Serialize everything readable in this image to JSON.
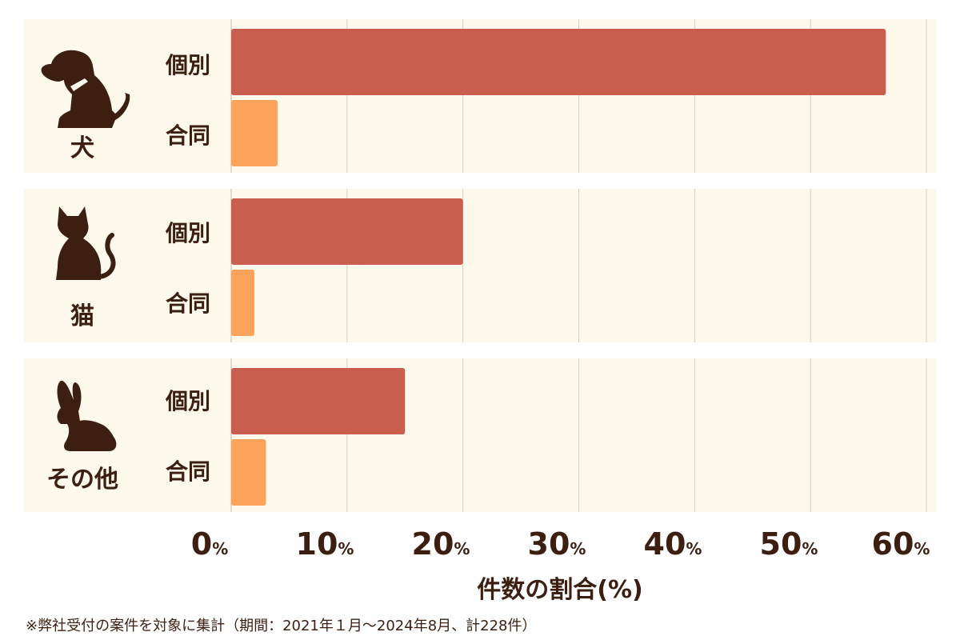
{
  "chart_data": {
    "type": "bar",
    "orientation": "horizontal",
    "groups": [
      {
        "name": "犬",
        "icon": "dog-icon",
        "bars": [
          {
            "label": "個別",
            "value": 56.5
          },
          {
            "label": "合同",
            "value": 4.0
          }
        ]
      },
      {
        "name": "猫",
        "icon": "cat-icon",
        "bars": [
          {
            "label": "個別",
            "value": 20.0
          },
          {
            "label": "合同",
            "value": 2.0
          }
        ]
      },
      {
        "name": "その他",
        "icon": "rabbit-icon",
        "bars": [
          {
            "label": "個別",
            "value": 15.0
          },
          {
            "label": "合同",
            "value": 3.0
          }
        ]
      }
    ],
    "xlim": [
      0,
      60
    ],
    "ticks": [
      {
        "num": "0",
        "unit": "%"
      },
      {
        "num": "10",
        "unit": "%"
      },
      {
        "num": "20",
        "unit": "%"
      },
      {
        "num": "30",
        "unit": "%"
      },
      {
        "num": "40",
        "unit": "%"
      },
      {
        "num": "50",
        "unit": "%"
      },
      {
        "num": "60",
        "unit": "%"
      }
    ],
    "xlabel": "件数の割合(%)",
    "grid": true,
    "colors": {
      "individual": "#c95d4e",
      "joint": "#fba35a",
      "band": "#fcf8ec",
      "grid": "#d8d0c0",
      "text": "#3d1f12"
    }
  },
  "footnote": "※弊社受付の案件を対象に集計（期間：2021年１月〜2024年8月、計228件）"
}
